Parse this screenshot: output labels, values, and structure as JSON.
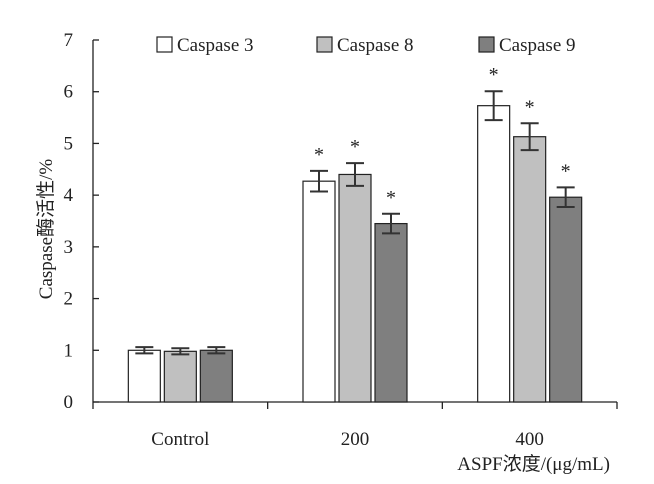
{
  "chart_data": {
    "type": "bar",
    "categories": [
      "Control",
      "200",
      "400"
    ],
    "series": [
      {
        "name": "Caspase 3",
        "values": [
          1.0,
          4.27,
          5.73
        ],
        "errors": [
          0.06,
          0.2,
          0.28
        ],
        "significant": [
          false,
          true,
          true
        ],
        "color": "#ffffff"
      },
      {
        "name": "Caspase 8",
        "values": [
          0.98,
          4.4,
          5.13
        ],
        "errors": [
          0.06,
          0.22,
          0.26
        ],
        "significant": [
          false,
          true,
          true
        ],
        "color": "#c0c0c0"
      },
      {
        "name": "Caspase 9",
        "values": [
          1.0,
          3.45,
          3.96
        ],
        "errors": [
          0.06,
          0.19,
          0.19
        ],
        "significant": [
          false,
          true,
          true
        ],
        "color": "#7f7f7f"
      }
    ],
    "ylabel": "Caspase酶活性/%",
    "xlabel": "ASPF浓度/(μg/mL)",
    "ylim": [
      0,
      7
    ],
    "yticks": [
      "0",
      "1",
      "2",
      "3",
      "4",
      "5",
      "6",
      "7"
    ],
    "significance_marker": "*",
    "legend": {
      "position": "top",
      "entries": [
        "Caspase 3",
        "Caspase 8",
        "Caspase 9"
      ]
    },
    "grid": false
  }
}
